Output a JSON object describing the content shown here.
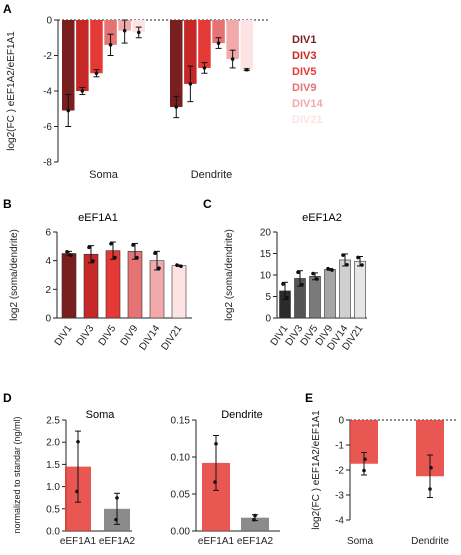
{
  "panels": {
    "A": {
      "letter": "A"
    },
    "B": {
      "letter": "B",
      "title": "eEF1A1"
    },
    "C": {
      "letter": "C",
      "title": "eEF1A2"
    },
    "D": {
      "letter": "D",
      "sub1_title": "Soma",
      "sub2_title": "Dendrite"
    },
    "E": {
      "letter": "E"
    }
  },
  "colors": {
    "DIV1": "#7a1f1f",
    "DIV3": "#c62828",
    "DIV5": "#e53935",
    "DIV9": "#e57373",
    "DIV14": "#f1a9a9",
    "DIV21": "#fde3e3",
    "grays": [
      "#2b2b2b",
      "#555555",
      "#7a7a7a",
      "#a6a6a6",
      "#cfcfcf",
      "#e6e6e6"
    ],
    "eEF1A1_bar": "#e53935",
    "eEF1A2_bar": "#777777"
  },
  "chart_data": [
    {
      "id": "A",
      "type": "bar",
      "ylabel": "log2(FC ) eEF1A2/eEF1A1",
      "categories": [
        "Soma",
        "Dendrite"
      ],
      "yticks": [
        "0",
        "-2",
        "-4",
        "-6",
        "-8"
      ],
      "ylim": [
        -8,
        0
      ],
      "series": [
        {
          "name": "DIV1",
          "values": [
            -5.1,
            -4.9
          ],
          "err": [
            0.9,
            0.6
          ]
        },
        {
          "name": "DIV3",
          "values": [
            -4.0,
            -3.6
          ],
          "err": [
            0.2,
            1.0
          ]
        },
        {
          "name": "DIV5",
          "values": [
            -3.0,
            -2.7
          ],
          "err": [
            0.2,
            0.3
          ]
        },
        {
          "name": "DIV9",
          "values": [
            -1.4,
            -1.3
          ],
          "err": [
            0.6,
            0.3
          ]
        },
        {
          "name": "DIV14",
          "values": [
            -0.6,
            -2.2
          ],
          "err": [
            0.7,
            0.5
          ]
        },
        {
          "name": "DIV21",
          "values": [
            -0.7,
            -2.8
          ],
          "err": [
            0.3,
            0.05
          ]
        }
      ]
    },
    {
      "id": "B",
      "type": "bar",
      "title": "eEF1A1",
      "ylabel": "log2 (soma/dendrite)",
      "categories": [
        "DIV1",
        "DIV3",
        "DIV5",
        "DIV9",
        "DIV14",
        "DIV21"
      ],
      "yticks": [
        "6",
        "4",
        "2",
        "0"
      ],
      "ylim": [
        0,
        6
      ],
      "values": [
        4.5,
        4.45,
        4.7,
        4.65,
        4.0,
        3.65
      ],
      "err": [
        0.15,
        0.6,
        0.6,
        0.55,
        0.65,
        0.05
      ]
    },
    {
      "id": "C",
      "type": "bar",
      "title": "eEF1A2",
      "ylabel": "log2 (soma/dendrite)",
      "categories": [
        "DIV1",
        "DIV3",
        "DIV5",
        "DIV9",
        "DIV14",
        "DIV21"
      ],
      "yticks": [
        "20",
        "15",
        "10",
        "5",
        "0"
      ],
      "ylim": [
        0,
        20
      ],
      "values": [
        6.3,
        9.2,
        9.7,
        11.3,
        13.5,
        13.2
      ],
      "err": [
        2.0,
        1.8,
        0.8,
        0.2,
        1.4,
        1.1
      ]
    },
    {
      "id": "D1",
      "type": "bar",
      "title": "Soma",
      "ylabel": "normalized to standar (ng/ml)",
      "categories": [
        "eEF1A1",
        "eEF1A2"
      ],
      "yticks": [
        "2.5",
        "2.0",
        "1.5",
        "1.0",
        "0.5",
        "0.0"
      ],
      "ylim": [
        0,
        2.5
      ],
      "values": [
        1.45,
        0.5
      ],
      "err": [
        0.8,
        0.35
      ]
    },
    {
      "id": "D2",
      "type": "bar",
      "title": "Dendrite",
      "categories": [
        "eEF1A1",
        "eEF1A2"
      ],
      "yticks": [
        "0.15",
        "0.10",
        "0.05",
        "0.00"
      ],
      "ylim": [
        0,
        0.15
      ],
      "values": [
        0.092,
        0.018
      ],
      "err": [
        0.037,
        0.004
      ]
    },
    {
      "id": "E",
      "type": "bar",
      "ylabel": "log2(FC ) eEF1A2/eEF1A1",
      "categories": [
        "Soma",
        "Dendrite"
      ],
      "yticks": [
        "0",
        "-1",
        "-2",
        "-3",
        "-4"
      ],
      "ylim": [
        -4,
        0
      ],
      "values": [
        -1.75,
        -2.25
      ],
      "err": [
        0.45,
        0.85
      ]
    }
  ]
}
